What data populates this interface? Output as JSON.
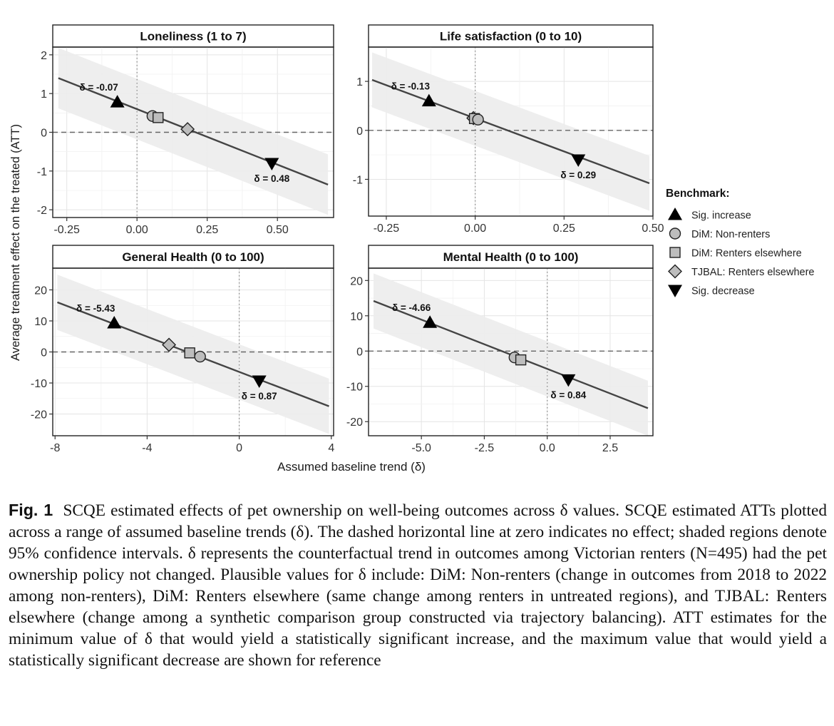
{
  "figure": {
    "ylabel": "Average treatment effect on the treated (ATT)",
    "xlabel": "Assumed baseline trend (δ)",
    "legend_title": "Benchmark:",
    "legend": [
      {
        "label": "Sig. increase",
        "shape": "triangle-up-icon"
      },
      {
        "label": "DiM: Non-renters",
        "shape": "circle-icon"
      },
      {
        "label": "DiM: Renters elsewhere",
        "shape": "square-icon"
      },
      {
        "label": "TJBAL: Renters elsewhere",
        "shape": "diamond-icon"
      },
      {
        "label": "Sig. decrease",
        "shape": "triangle-down-icon"
      }
    ]
  },
  "chart_data": [
    {
      "type": "line",
      "title": "Loneliness (1 to 7)",
      "xlim": [
        -0.3,
        0.7
      ],
      "ylim": [
        -2.2,
        2.2
      ],
      "xticks": [
        -0.25,
        0,
        0.25,
        0.5
      ],
      "xtick_labels": [
        "-0.25",
        "0.00",
        "0.25",
        "0.50"
      ],
      "yticks": [
        -2,
        -1,
        0,
        1,
        2
      ],
      "ytick_labels": [
        "-2",
        "-1",
        "0",
        "1",
        "2"
      ],
      "line": {
        "x": [
          -0.28,
          0.68
        ],
        "y": [
          1.4,
          -1.35
        ]
      },
      "ci_halfwidth": 0.78,
      "vline": 0,
      "points": [
        {
          "shape": "triangle-up",
          "x": -0.07,
          "y": 0.78,
          "label": "δ = -0.07",
          "label_pos": "above"
        },
        {
          "shape": "circle",
          "x": 0.055,
          "y": 0.42
        },
        {
          "shape": "square",
          "x": 0.075,
          "y": 0.38
        },
        {
          "shape": "diamond",
          "x": 0.18,
          "y": 0.08
        },
        {
          "shape": "triangle-down",
          "x": 0.48,
          "y": -0.8,
          "label": "δ = 0.48",
          "label_pos": "below"
        }
      ]
    },
    {
      "type": "line",
      "title": "Life satisfaction (0 to 10)",
      "xlim": [
        -0.3,
        0.5
      ],
      "ylim": [
        -1.75,
        1.7
      ],
      "xticks": [
        -0.25,
        0,
        0.25,
        0.5
      ],
      "xtick_labels": [
        "-0.25",
        "0.00",
        "0.25",
        "0.50"
      ],
      "yticks": [
        -1,
        0,
        1
      ],
      "ytick_labels": [
        "-1",
        "0",
        "1"
      ],
      "line": {
        "x": [
          -0.29,
          0.49
        ],
        "y": [
          1.03,
          -1.08
        ]
      },
      "ci_halfwidth": 0.56,
      "vline": 0,
      "points": [
        {
          "shape": "triangle-up",
          "x": -0.13,
          "y": 0.6,
          "label": "δ = -0.13",
          "label_pos": "above"
        },
        {
          "shape": "diamond",
          "x": -0.005,
          "y": 0.25
        },
        {
          "shape": "square",
          "x": -0.002,
          "y": 0.24
        },
        {
          "shape": "circle",
          "x": 0.008,
          "y": 0.22
        },
        {
          "shape": "triangle-down",
          "x": 0.29,
          "y": -0.6,
          "label": "δ = 0.29",
          "label_pos": "below"
        }
      ]
    },
    {
      "type": "line",
      "title": "General Health (0 to 100)",
      "xlim": [
        -8.1,
        4.1
      ],
      "ylim": [
        -27,
        27
      ],
      "xticks": [
        -8,
        -4,
        0,
        4
      ],
      "xtick_labels": [
        "-8",
        "-4",
        "0",
        "4"
      ],
      "yticks": [
        -20,
        -10,
        0,
        10,
        20
      ],
      "ytick_labels": [
        "-20",
        "-10",
        "0",
        "10",
        "20"
      ],
      "line": {
        "x": [
          -7.9,
          3.9
        ],
        "y": [
          16,
          -17.5
        ]
      },
      "ci_halfwidth": 8.9,
      "vline": 0,
      "points": [
        {
          "shape": "triangle-up",
          "x": -5.43,
          "y": 9.3,
          "label": "δ = -5.43",
          "label_pos": "above"
        },
        {
          "shape": "diamond",
          "x": -3.05,
          "y": 2.3
        },
        {
          "shape": "square",
          "x": -2.15,
          "y": -0.3
        },
        {
          "shape": "circle",
          "x": -1.7,
          "y": -1.5
        },
        {
          "shape": "triangle-down",
          "x": 0.87,
          "y": -9.3,
          "label": "δ = 0.87",
          "label_pos": "below"
        }
      ]
    },
    {
      "type": "line",
      "title": "Mental Health (0 to 100)",
      "xlim": [
        -7.1,
        4.2
      ],
      "ylim": [
        -24,
        23.5
      ],
      "xticks": [
        -5,
        -2.5,
        0,
        2.5
      ],
      "xtick_labels": [
        "-5.0",
        "-2.5",
        "0.0",
        "2.5"
      ],
      "yticks": [
        -20,
        -10,
        0,
        10,
        20
      ],
      "ytick_labels": [
        "-20",
        "-10",
        "0",
        "10",
        "20"
      ],
      "line": {
        "x": [
          -6.9,
          4.0
        ],
        "y": [
          14.2,
          -16.2
        ]
      },
      "ci_halfwidth": 7.8,
      "vline": 0,
      "points": [
        {
          "shape": "triangle-up",
          "x": -4.66,
          "y": 8.1,
          "label": "δ = -4.66",
          "label_pos": "above"
        },
        {
          "shape": "circle",
          "x": -1.3,
          "y": -1.8
        },
        {
          "shape": "square",
          "x": -1.05,
          "y": -2.5
        },
        {
          "shape": "triangle-down",
          "x": 0.84,
          "y": -8.1,
          "label": "δ = 0.84",
          "label_pos": "below"
        }
      ]
    }
  ],
  "caption": {
    "label": "Fig. 1",
    "text": "SCQE estimated effects of pet ownership on well-being outcomes across δ values. SCQE estimated ATTs plotted across a range of assumed baseline trends (δ). The dashed horizontal line at zero indicates no effect; shaded regions denote 95% confidence intervals. δ represents the counterfactual trend in outcomes among Victorian renters (N=495) had the pet ownership policy not changed. Plausible values for δ include: DiM: Non-renters (change in outcomes from 2018 to 2022 among non-renters), DiM: Renters elsewhere (same change among renters in untreated regions), and TJBAL: Renters elsewhere (change among a synthetic comparison group constructed via trajectory balancing). ATT estimates for the minimum value of δ that would yield a statistically significant increase, and the maximum value that would yield a statistically significant decrease are shown for reference"
  }
}
